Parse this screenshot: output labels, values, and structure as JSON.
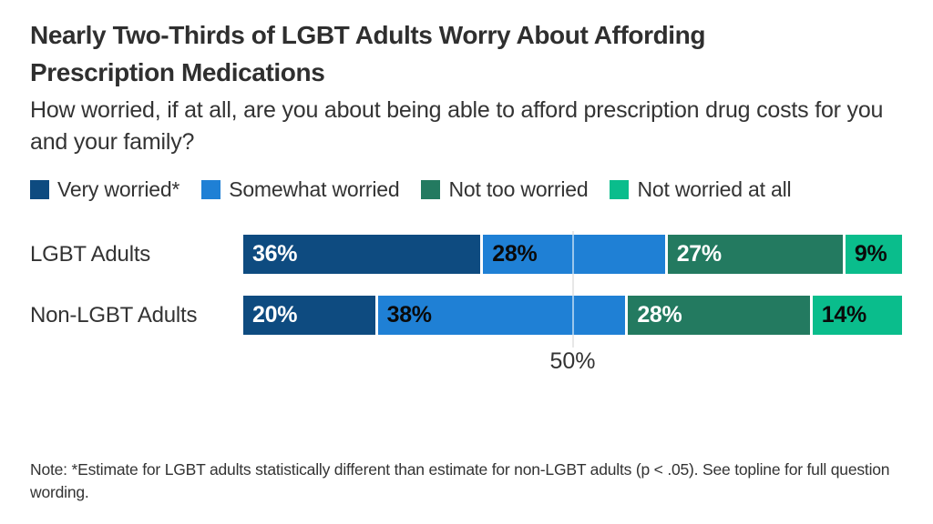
{
  "header": {
    "title": "Nearly Two-Thirds of LGBT Adults Worry About Affording Prescription Medications",
    "subtitle": "How worried, if at all, are you about being able to afford prescription drug costs for you and your family?"
  },
  "chart_data": {
    "type": "bar",
    "orientation": "horizontal",
    "stacked": true,
    "categories": [
      "LGBT Adults",
      "Non-LGBT Adults"
    ],
    "series": [
      {
        "name": "Very worried*",
        "values": [
          36,
          20
        ],
        "color": "#0E4B80",
        "label_color": "#FFFFFF"
      },
      {
        "name": "Somewhat worried",
        "values": [
          28,
          38
        ],
        "color": "#1F80D5",
        "label_color": "#0A0A0A"
      },
      {
        "name": "Not too worried",
        "values": [
          27,
          28
        ],
        "color": "#237A60",
        "label_color": "#FFFFFF"
      },
      {
        "name": "Not worried at all",
        "values": [
          9,
          14
        ],
        "color": "#0ABD8C",
        "label_color": "#0A0A0A"
      }
    ],
    "value_suffix": "%",
    "xlim": [
      0,
      100
    ],
    "ticks": [
      {
        "value": 50,
        "label": "50%"
      }
    ],
    "legend_position": "top",
    "grid": true
  },
  "note": "Note: *Estimate for LGBT adults statistically different than estimate for non-LGBT adults (p < .05). See topline for full question wording.",
  "colors": {
    "text": "#333333",
    "gridline": "#E7E7E7",
    "background": "#FFFFFF"
  }
}
